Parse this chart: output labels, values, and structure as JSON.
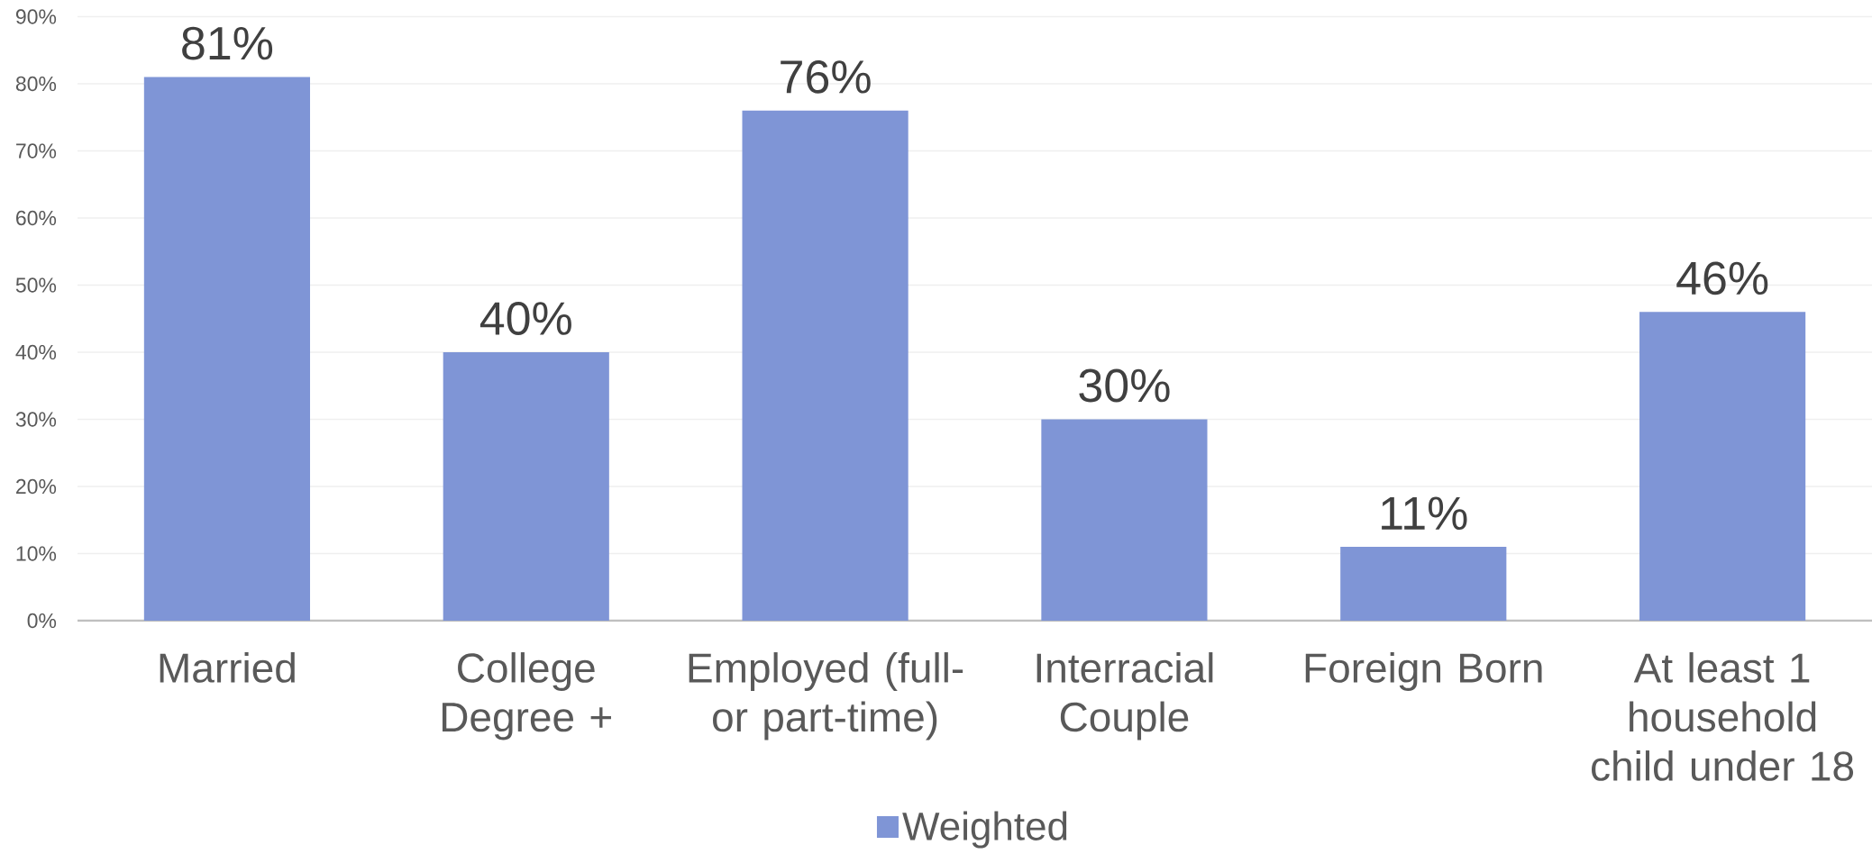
{
  "chart_data": {
    "type": "bar",
    "categories": [
      "Married",
      "College Degree +",
      "Employed (full- or part-time)",
      "Interracial Couple",
      "Foreign Born",
      "At least 1 household child under 18"
    ],
    "series": [
      {
        "name": "Weighted",
        "color": "#7f95d6",
        "values": [
          81,
          40,
          76,
          30,
          11,
          46
        ],
        "value_labels": [
          "81%",
          "40%",
          "76%",
          "30%",
          "11%",
          "46%"
        ]
      }
    ],
    "ylim": [
      0,
      90
    ],
    "yticks": [
      {
        "value": 0,
        "label": "0%"
      },
      {
        "value": 10,
        "label": "10%"
      },
      {
        "value": 20,
        "label": "20%"
      },
      {
        "value": 30,
        "label": "30%"
      },
      {
        "value": 40,
        "label": "40%"
      },
      {
        "value": 50,
        "label": "50%"
      },
      {
        "value": 60,
        "label": "60%"
      },
      {
        "value": 70,
        "label": "70%"
      },
      {
        "value": 80,
        "label": "80%"
      },
      {
        "value": 90,
        "label": "90%"
      }
    ],
    "grid": "y",
    "legend": "bottom"
  }
}
